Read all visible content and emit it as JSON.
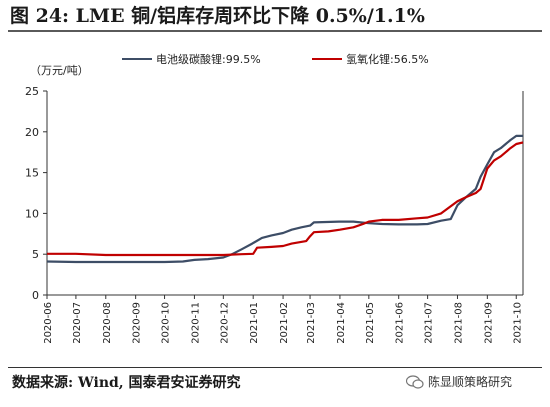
{
  "title": "图 24:  LME 铜/铝库存周环比下降 0.5%/1.1%",
  "source": "数据来源:  Wind,  国泰君安证券研究",
  "watermark": "陈显顺策略研究",
  "colors": {
    "lithium_carbonate": "#3d4d66",
    "lithium_hydroxide": "#c00000",
    "axis": "#333333"
  },
  "chart_data": {
    "type": "line",
    "unit_label": "（万元/吨）",
    "ylim": [
      0,
      25
    ],
    "yticks": [
      0,
      5,
      10,
      15,
      20,
      25
    ],
    "xlim": [
      "2020-06-01",
      "2021-10-08"
    ],
    "xticks": [
      "2020-06",
      "2020-07",
      "2020-08",
      "2020-09",
      "2020-10",
      "2020-11",
      "2020-12",
      "2021-01",
      "2021-02",
      "2021-03",
      "2021-04",
      "2021-05",
      "2021-06",
      "2021-07",
      "2021-08",
      "2021-09",
      "2021-10"
    ],
    "grid": false,
    "legend_position": "top",
    "series": [
      {
        "name": "电池级碳酸锂:99.5%",
        "color": "#3d4d66",
        "points": [
          [
            "2020-06-01",
            4.1
          ],
          [
            "2020-07-01",
            4.05
          ],
          [
            "2020-08-01",
            4.05
          ],
          [
            "2020-09-01",
            4.05
          ],
          [
            "2020-10-01",
            4.05
          ],
          [
            "2020-10-20",
            4.1
          ],
          [
            "2020-11-01",
            4.3
          ],
          [
            "2020-11-15",
            4.4
          ],
          [
            "2020-12-01",
            4.6
          ],
          [
            "2020-12-10",
            5.0
          ],
          [
            "2020-12-20",
            5.6
          ],
          [
            "2020-12-31",
            6.3
          ],
          [
            "2021-01-10",
            7.0
          ],
          [
            "2021-01-20",
            7.3
          ],
          [
            "2021-02-01",
            7.6
          ],
          [
            "2021-02-10",
            8.0
          ],
          [
            "2021-02-20",
            8.3
          ],
          [
            "2021-03-01",
            8.5
          ],
          [
            "2021-03-05",
            8.9
          ],
          [
            "2021-03-31",
            9.0
          ],
          [
            "2021-04-15",
            9.0
          ],
          [
            "2021-05-01",
            8.8
          ],
          [
            "2021-05-15",
            8.7
          ],
          [
            "2021-06-01",
            8.65
          ],
          [
            "2021-06-20",
            8.65
          ],
          [
            "2021-07-01",
            8.7
          ],
          [
            "2021-07-15",
            9.1
          ],
          [
            "2021-07-25",
            9.3
          ],
          [
            "2021-08-01",
            11.0
          ],
          [
            "2021-08-10",
            12.0
          ],
          [
            "2021-08-20",
            13.0
          ],
          [
            "2021-08-25",
            14.5
          ],
          [
            "2021-09-01",
            16.0
          ],
          [
            "2021-09-08",
            17.5
          ],
          [
            "2021-09-15",
            18.0
          ],
          [
            "2021-09-20",
            18.5
          ],
          [
            "2021-09-25",
            19.0
          ],
          [
            "2021-10-01",
            19.5
          ],
          [
            "2021-10-08",
            19.5
          ]
        ]
      },
      {
        "name": "氢氧化锂:56.5%",
        "color": "#c00000",
        "points": [
          [
            "2020-06-01",
            5.05
          ],
          [
            "2020-07-01",
            5.05
          ],
          [
            "2020-08-01",
            4.9
          ],
          [
            "2020-09-01",
            4.9
          ],
          [
            "2020-10-01",
            4.9
          ],
          [
            "2020-11-01",
            4.9
          ],
          [
            "2020-12-01",
            4.9
          ],
          [
            "2020-12-20",
            5.0
          ],
          [
            "2021-01-01",
            5.05
          ],
          [
            "2021-01-05",
            5.8
          ],
          [
            "2021-01-20",
            5.9
          ],
          [
            "2021-02-01",
            6.0
          ],
          [
            "2021-02-10",
            6.3
          ],
          [
            "2021-02-25",
            6.6
          ],
          [
            "2021-03-01",
            7.2
          ],
          [
            "2021-03-05",
            7.7
          ],
          [
            "2021-03-20",
            7.8
          ],
          [
            "2021-04-01",
            8.0
          ],
          [
            "2021-04-15",
            8.3
          ],
          [
            "2021-04-25",
            8.7
          ],
          [
            "2021-05-01",
            9.0
          ],
          [
            "2021-05-15",
            9.2
          ],
          [
            "2021-06-01",
            9.2
          ],
          [
            "2021-06-20",
            9.4
          ],
          [
            "2021-07-01",
            9.5
          ],
          [
            "2021-07-15",
            10.0
          ],
          [
            "2021-08-01",
            11.5
          ],
          [
            "2021-08-10",
            12.0
          ],
          [
            "2021-08-20",
            12.5
          ],
          [
            "2021-08-25",
            13.0
          ],
          [
            "2021-09-01",
            15.5
          ],
          [
            "2021-09-08",
            16.5
          ],
          [
            "2021-09-15",
            17.0
          ],
          [
            "2021-09-20",
            17.5
          ],
          [
            "2021-09-25",
            18.0
          ],
          [
            "2021-10-01",
            18.5
          ],
          [
            "2021-10-08",
            18.7
          ]
        ]
      }
    ]
  }
}
